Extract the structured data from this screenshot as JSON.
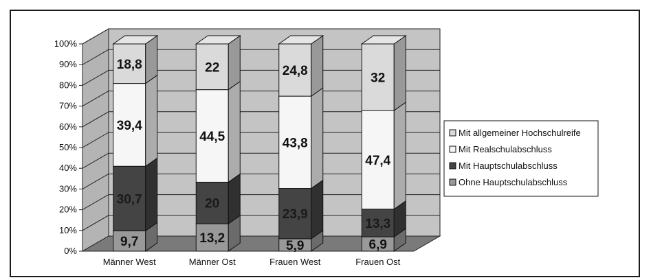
{
  "chart_data": {
    "type": "bar",
    "stacked": true,
    "percent_stacked": true,
    "three_d": true,
    "title": "",
    "xlabel": "",
    "ylabel": "",
    "ylim": [
      0,
      100
    ],
    "yticks": [
      "0%",
      "10%",
      "20%",
      "30%",
      "40%",
      "50%",
      "60%",
      "70%",
      "80%",
      "90%",
      "100%"
    ],
    "categories": [
      "Männer West",
      "Männer Ost",
      "Frauen West",
      "Frauen Ost"
    ],
    "series": [
      {
        "name": "Ohne Hauptschulabschluss",
        "values": [
          9.7,
          13.2,
          5.9,
          6.9
        ],
        "labels": [
          "9,7",
          "13,2",
          "5,9",
          "6,9"
        ],
        "color": "#999999"
      },
      {
        "name": "Mit Hauptschulabschluss",
        "values": [
          30.7,
          20,
          23.9,
          13.3
        ],
        "labels": [
          "30,7",
          "20",
          "23,9",
          "13,3"
        ],
        "color": "#444444"
      },
      {
        "name": "Mit Realschulabschluss",
        "values": [
          39.4,
          44.5,
          43.8,
          47.4
        ],
        "labels": [
          "39,4",
          "44,5",
          "43,8",
          "47,4"
        ],
        "color": "#f6f6f6"
      },
      {
        "name": "Mit allgemeiner Hochschulreife",
        "values": [
          18.8,
          22,
          24.8,
          32
        ],
        "labels": [
          "18,8",
          "22",
          "24,8",
          "32"
        ],
        "color": "#dadada"
      }
    ],
    "legend_order": [
      "Mit allgemeiner Hochschulreife",
      "Mit Realschulabschluss",
      "Mit Hauptschulabschluss",
      "Ohne Hauptschulabschluss"
    ],
    "legend_position": "right",
    "grid": true,
    "wall_color": "#c4c4c4",
    "floor_color": "#7a7a7a"
  }
}
